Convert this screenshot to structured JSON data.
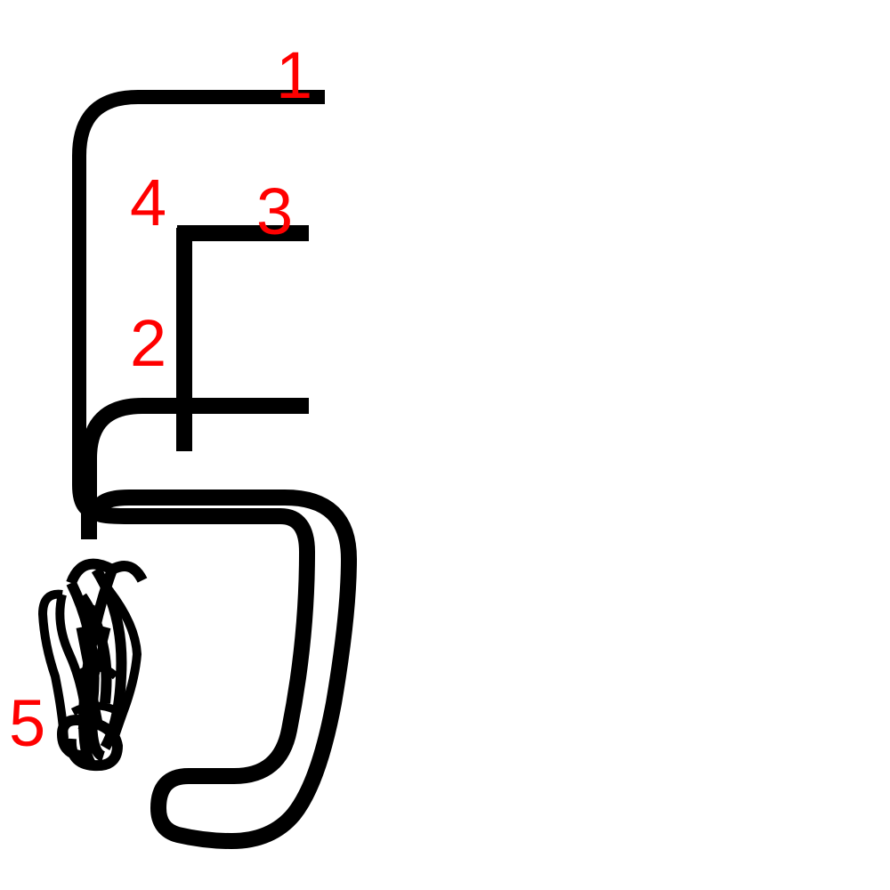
{
  "figure": {
    "background_color": "#ffffff",
    "stroke_color": "#000000",
    "label_color": "#ff0000"
  },
  "labels": {
    "stroke_1": "1",
    "stroke_2": "2",
    "stroke_3": "3",
    "stroke_4": "4",
    "stroke_5": "5"
  }
}
